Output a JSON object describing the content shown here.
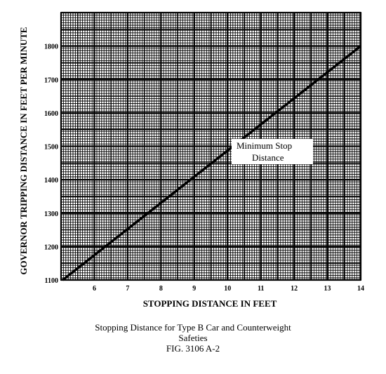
{
  "chart_data": {
    "type": "line",
    "title": "",
    "xlabel": "STOPPING DISTANCE IN FEET",
    "ylabel": "GOVERNOR TRIPPING DISTANCE IN FEET PER MINUTE",
    "xlim": [
      5,
      14
    ],
    "ylim": [
      1100,
      1900
    ],
    "x_ticks": [
      "6",
      "7",
      "8",
      "9",
      "10",
      "11",
      "12",
      "13",
      "14"
    ],
    "y_ticks": [
      "1100",
      "1200",
      "1300",
      "1400",
      "1500",
      "1600",
      "1700",
      "1800"
    ],
    "grid": true,
    "legend": "none",
    "series": [
      {
        "x": [
          5.05,
          14
        ],
        "y": [
          1100,
          1800
        ]
      }
    ],
    "annotation": {
      "line1": "Minimum Stop",
      "line2": "Distance",
      "x": 11.1,
      "y": 1505
    }
  },
  "caption": {
    "line1": "Stopping Distance for Type B Car and Counterweight",
    "line2": "Safeties",
    "line3": "FIG. 3106 A-2"
  }
}
